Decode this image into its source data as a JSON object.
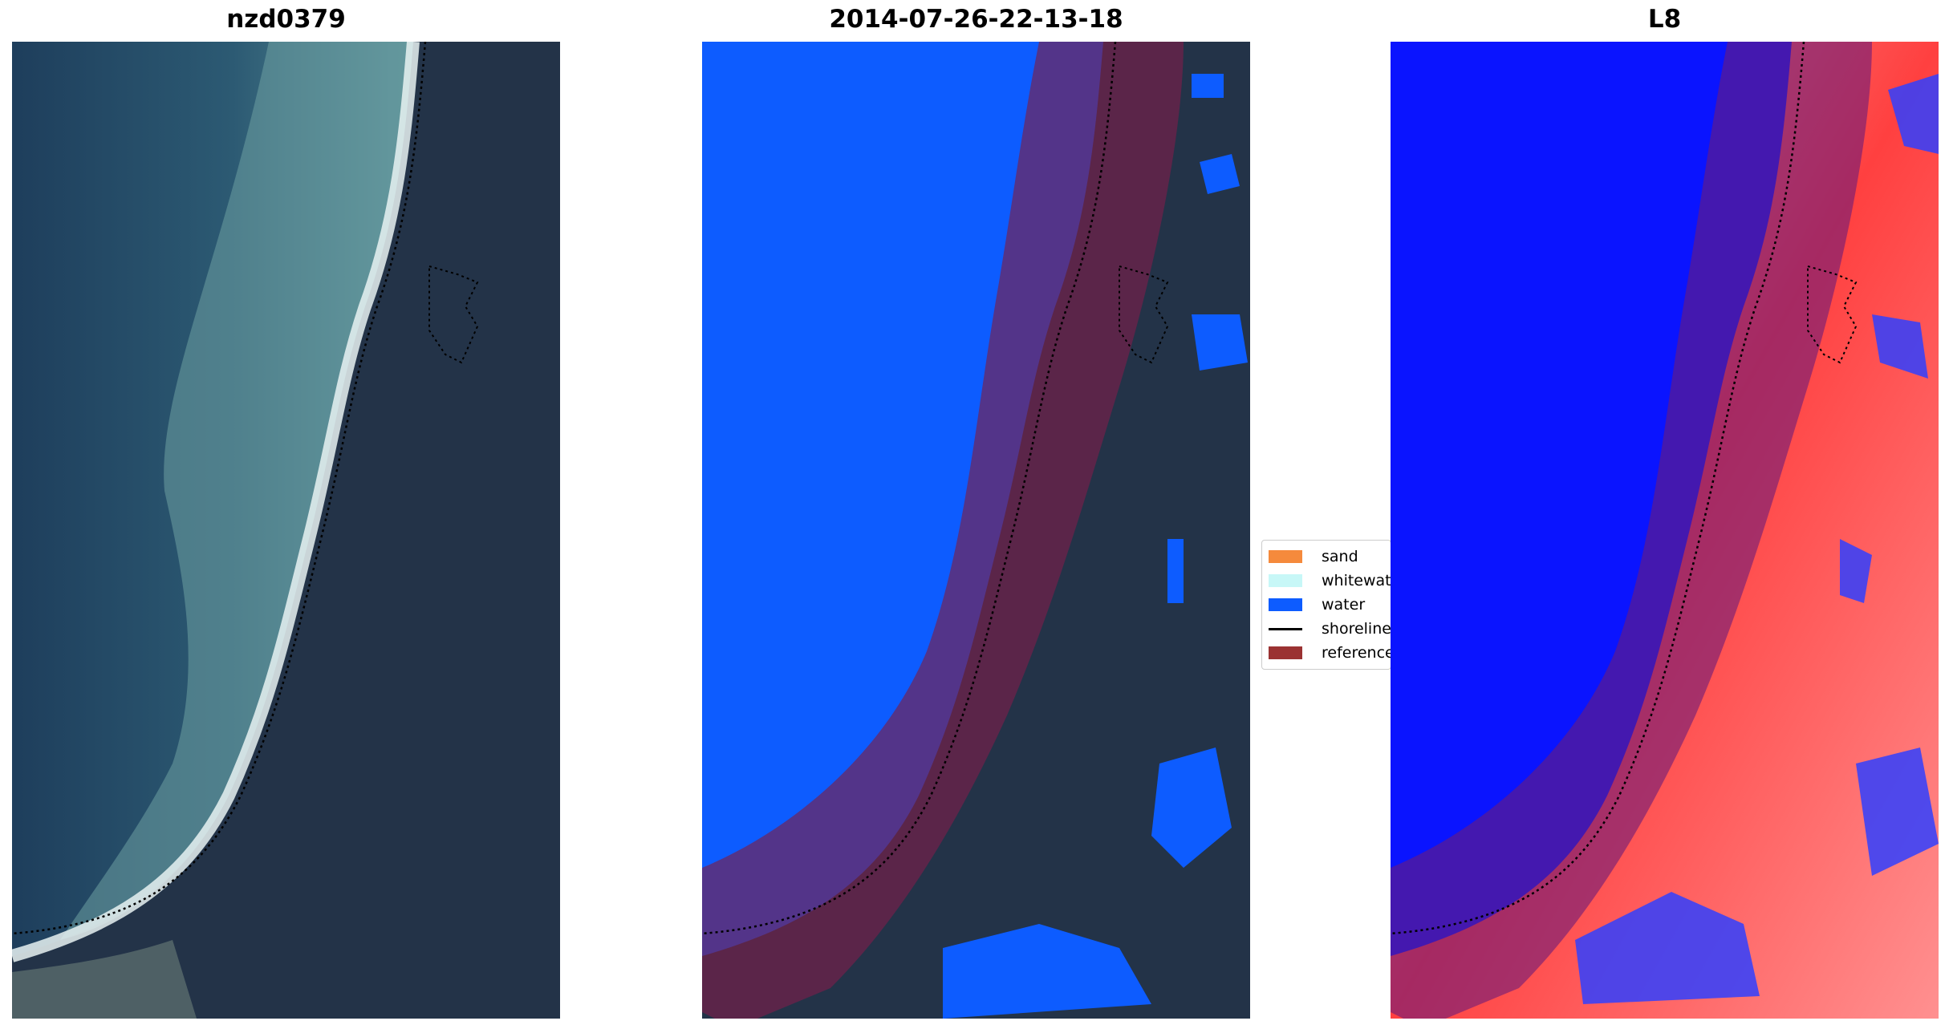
{
  "panels": [
    {
      "title": "nzd0379"
    },
    {
      "title": "2014-07-26-22-13-18"
    },
    {
      "title": "L8"
    }
  ],
  "legend": {
    "items": [
      {
        "label": "sand",
        "color": "#f58a3c",
        "kind": "patch"
      },
      {
        "label": "whitewater",
        "color": "#c7f7f7",
        "kind": "patch"
      },
      {
        "label": "water",
        "color": "#0d5cff",
        "kind": "patch"
      },
      {
        "label": "shoreline",
        "color": "#000000",
        "kind": "line"
      },
      {
        "label": "reference",
        "color": "#9b3232",
        "kind": "patch"
      }
    ]
  },
  "colors": {
    "sea_deep": "#1d3f5e",
    "sea_shallow": "#4b7f91",
    "land_forest": "#223145",
    "classified_water": "#0d5cff",
    "reference_buffer": "#8c1e3c",
    "index_blue": "#0a14ff",
    "index_red": "#ff2020"
  }
}
